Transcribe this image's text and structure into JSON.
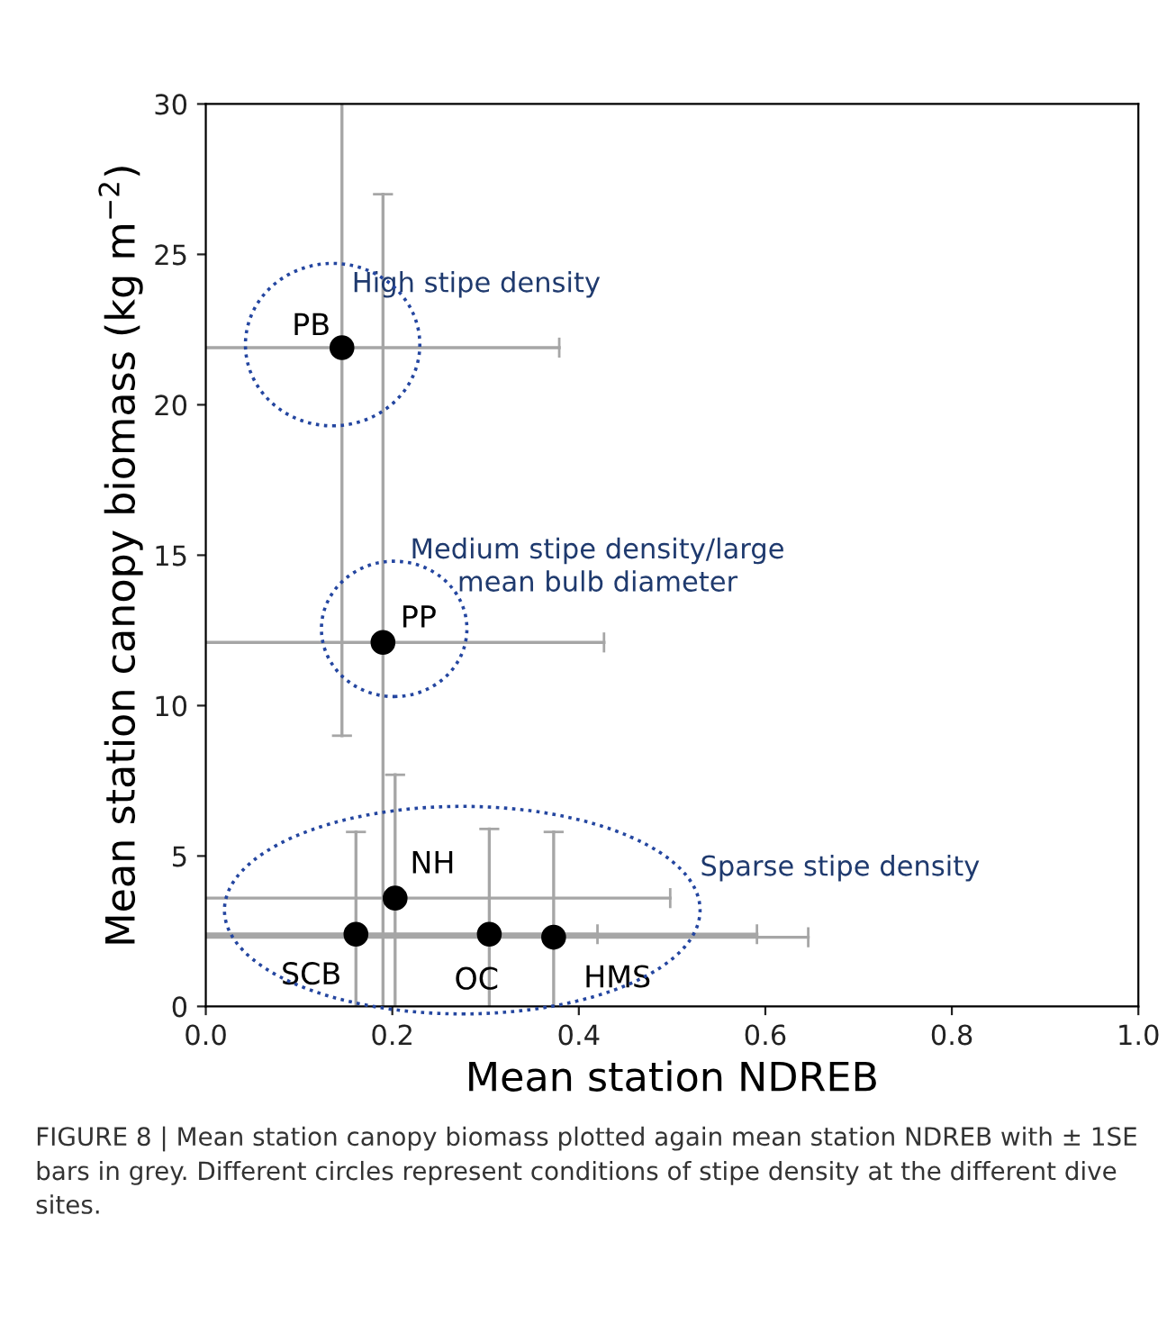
{
  "chart_data": {
    "type": "scatter",
    "xlabel": "Mean station NDREB",
    "ylabel": "Mean station canopy biomass (kg m$^{−2}$)",
    "xlim": [
      0,
      1
    ],
    "ylim": [
      0,
      30
    ],
    "xticks": [
      {
        "value": 0,
        "label": "0.0"
      },
      {
        "value": 0.2,
        "label": "0.2"
      },
      {
        "value": 0.4,
        "label": "0.4"
      },
      {
        "value": 0.6,
        "label": "0.6"
      },
      {
        "value": 0.8,
        "label": "0.8"
      },
      {
        "value": 1,
        "label": "1.0"
      }
    ],
    "yticks": [
      0,
      5,
      10,
      15,
      20,
      25,
      30
    ],
    "marker": "circle",
    "grid": false,
    "legend": false,
    "series": [
      {
        "color": "#000000",
        "x": [
          0.146,
          0.19,
          0.203,
          0.161,
          0.304,
          0.373
        ],
        "values": [
          21.9,
          12.1,
          3.6,
          2.4,
          2.4,
          2.3
        ],
        "errors": [
          [
            9.0,
            30
          ],
          [
            0,
            27.0
          ],
          [
            0,
            7.7
          ],
          [
            0,
            5.8
          ],
          [
            0,
            5.9
          ],
          [
            0,
            5.8
          ]
        ],
        "xerrors": [
          [
            0,
            0.379
          ],
          [
            0,
            0.427
          ],
          [
            0,
            0.498
          ],
          [
            0,
            0.42
          ],
          [
            0,
            0.591
          ],
          [
            0,
            0.646
          ]
        ]
      }
    ],
    "annotations": [
      {
        "text": "PB",
        "x": 0.146,
        "y": 21.9
      },
      {
        "text": "PP",
        "x": 0.19,
        "y": 12.1
      },
      {
        "text": "NH",
        "x": 0.203,
        "y": 3.6
      },
      {
        "text": "SCB",
        "x": 0.161,
        "y": 2.4
      },
      {
        "text": "OC",
        "x": 0.304,
        "y": 2.4
      },
      {
        "text": "HMS",
        "x": 0.373,
        "y": 2.3
      },
      "High stipe density",
      "Medium stipe density/large mean bulb diameter",
      "Sparse stipe density",
      "FIGURE 8 | Mean station canopy biomass plotted again mean station NDREB with ± 1SE bars in grey. Different circles represent conditions of stipe density at the different dive sites."
    ]
  }
}
